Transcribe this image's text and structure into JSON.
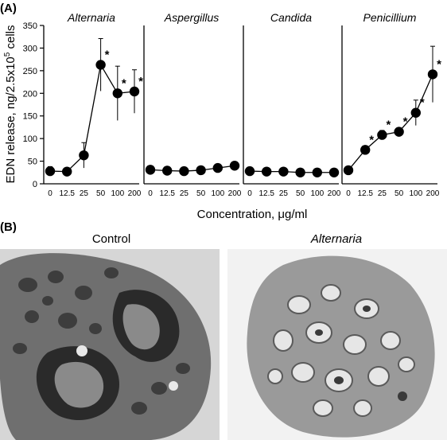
{
  "figure": {
    "panel_a_label": "(A)",
    "panel_b_label": "(B)",
    "control_label": "Control",
    "alternaria_label": "Alternaria"
  },
  "chart_data": {
    "type": "line",
    "ylabel_prefix": "EDN release, ng/2.5x10",
    "ylabel_exp": "5",
    "ylabel_suffix": " cells",
    "xlabel": "Concentration, μg/ml",
    "ylim": [
      0,
      350
    ],
    "yticks": [
      0,
      50,
      100,
      150,
      200,
      250,
      300,
      350
    ],
    "categories": [
      "0",
      "12.5",
      "25",
      "50",
      "100",
      "200"
    ],
    "grid": false,
    "panels": [
      {
        "title": "Alternaria",
        "values": [
          28,
          27,
          63,
          263,
          200,
          204
        ],
        "errors": [
          10,
          8,
          28,
          58,
          60,
          48
        ],
        "significant": [
          false,
          false,
          false,
          true,
          true,
          true
        ]
      },
      {
        "title": "Aspergillus",
        "values": [
          31,
          29,
          28,
          30,
          35,
          40
        ],
        "errors": [
          8,
          8,
          8,
          8,
          7,
          8
        ],
        "significant": [
          false,
          false,
          false,
          false,
          false,
          false
        ]
      },
      {
        "title": "Candida",
        "values": [
          28,
          27,
          27,
          25,
          25,
          25
        ],
        "errors": [
          8,
          8,
          8,
          8,
          8,
          8
        ],
        "significant": [
          false,
          false,
          false,
          false,
          false,
          false
        ]
      },
      {
        "title": "Penicillium",
        "values": [
          30,
          75,
          108,
          115,
          157,
          242
        ],
        "errors": [
          8,
          8,
          10,
          8,
          28,
          62
        ],
        "significant": [
          false,
          true,
          true,
          true,
          true,
          true
        ]
      }
    ]
  }
}
